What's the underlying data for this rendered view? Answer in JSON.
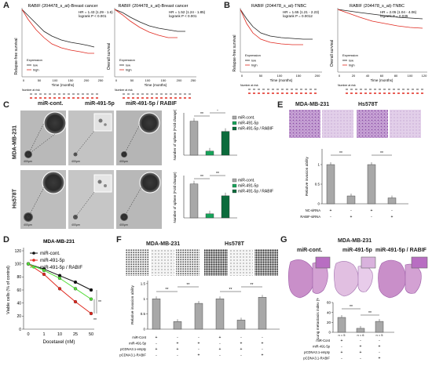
{
  "panels": {
    "A": {
      "label": "A",
      "km1": {
        "title": "RABIF (204478_s_at)-Breast cancer",
        "stats": [
          "HR = 1.43 (1.29 - 1.6)",
          "logrank  P < 0.001"
        ],
        "ylabel": "Relapse-free survival",
        "xlabel": "Time (months)",
        "legend_title": "Expression",
        "legend": [
          "low",
          "high"
        ],
        "xticks": [
          "0",
          "50",
          "100",
          "150",
          "200",
          "250"
        ],
        "risk_label": "Number at risk"
      },
      "km2": {
        "title": "RABIF (204478_s_at)-Breast cancer",
        "stats": [
          "HR = 1.52 (1.24 - 1.85)",
          "logrank  P < 0.001"
        ],
        "ylabel": "Overall survival",
        "xlabel": "Time (months)",
        "legend_title": "Expression",
        "legend": [
          "low",
          "high"
        ],
        "xticks": [
          "0",
          "50",
          "100",
          "150",
          "200",
          "250"
        ],
        "risk_label": "Number at risk"
      }
    },
    "B": {
      "label": "B",
      "km1": {
        "title": "RABIF (204478_s_at)-TNBC",
        "stats": [
          "HR = 1.65 (1.21 - 2.23)",
          "logrank  P = 0.0012"
        ],
        "ylabel": "Relapse-free survival",
        "xlabel": "Time (months)",
        "legend_title": "Expression",
        "legend": [
          "low",
          "high"
        ],
        "xticks": [
          "0",
          "50",
          "100",
          "150",
          "200"
        ],
        "risk_label": "Number at risk"
      },
      "km2": {
        "title": "RABIF (204478_s_at)-TNBC",
        "stats": [
          "HR = 2.05 (1.04 - 4.06)",
          "logrank  P = 0.035"
        ],
        "ylabel": "Overall survival",
        "xlabel": "Time (months)",
        "legend_title": "Expression",
        "legend": [
          "low",
          "high"
        ],
        "xticks": [
          "0",
          "20",
          "40",
          "60",
          "80",
          "100",
          "120"
        ],
        "risk_label": "Number at risk"
      }
    },
    "C": {
      "label": "C",
      "col_titles": [
        "miR-cont.",
        "miR-491-5p",
        "miR-491-5p / RABIF"
      ],
      "row_titles": [
        "MDA-MB-231",
        "Hs578T"
      ],
      "scale": "400μm",
      "ylabel": "Number of sphere (Fold change)",
      "legend": [
        "miR-cont.",
        "miR-491-5p",
        "miR-491-5p / RABIF"
      ],
      "sig1": [
        "**",
        "*"
      ],
      "sig2": [
        "**",
        "**"
      ]
    },
    "D": {
      "label": "D",
      "title": "MDA-MB-231",
      "ylabel": "Viable cells (% of control)",
      "xlabel": "Docetaxel (nM)",
      "legend": [
        "miR-cont.",
        "miR-491-5p",
        "miR-491-5p / RABIF"
      ],
      "sig": [
        "**",
        "**"
      ]
    },
    "E": {
      "label": "E",
      "cells": [
        "MDA-MB-231",
        "Hs578T"
      ],
      "ylabel": "Relative invasion ability",
      "rows": [
        {
          "name": "NC-siRNA",
          "marks": [
            "+",
            "-",
            "+",
            "-"
          ]
        },
        {
          "name": "RABIF-siRNA",
          "marks": [
            "-",
            "+",
            "-",
            "+"
          ]
        }
      ],
      "sig": [
        "**",
        "**"
      ]
    },
    "F": {
      "label": "F",
      "cells": [
        "MDA-MB-231",
        "Hs578T"
      ],
      "ylabel": "Relative invasion ability",
      "rows": [
        {
          "name": "miR-Cont",
          "marks": [
            "+",
            "-",
            "-",
            "+",
            "-",
            "-"
          ]
        },
        {
          "name": "miR-491-5p",
          "marks": [
            "-",
            "+",
            "+",
            "-",
            "+",
            "+"
          ]
        },
        {
          "name": "pCDNA3.1-empty",
          "marks": [
            "+",
            "+",
            "-",
            "+",
            "+",
            "-"
          ]
        },
        {
          "name": "pCDNA3.1-RABIF",
          "marks": [
            "-",
            "-",
            "+",
            "-",
            "-",
            "+"
          ]
        }
      ],
      "sig": [
        "**",
        "**",
        "**",
        "**"
      ]
    },
    "G": {
      "label": "G",
      "title": "MDA-MB-231",
      "col_titles": [
        "miR-cont.",
        "miR-491-5p",
        "miR-491-5p / RABIF"
      ],
      "ylabel": "Lung metastasis index (%)",
      "n_labels": [
        "n = 5",
        "n = 6",
        "n = 5"
      ],
      "rows": [
        {
          "name": "miR-Cont",
          "marks": [
            "+",
            "-",
            "-"
          ]
        },
        {
          "name": "miR-491-5p",
          "marks": [
            "-",
            "+",
            "+"
          ]
        },
        {
          "name": "pCDNA3.1-empty",
          "marks": [
            "+",
            "+",
            "-"
          ]
        },
        {
          "name": "pCDNA3.1-RABIF",
          "marks": [
            "-",
            "-",
            "+"
          ]
        }
      ],
      "sig": [
        "**",
        "**"
      ]
    }
  },
  "colors": {
    "low": "#222222",
    "high": "#e0281e",
    "cont": "#a8a8a8",
    "mir": "#17a35a",
    "rabif": "#0c6b3c",
    "d_cont": "#111111",
    "d_mir": "#e0281e",
    "d_rabif": "#55dd3a"
  },
  "chart_data": [
    {
      "id": "C-MDA",
      "type": "bar",
      "categories": [
        "miR-cont.",
        "miR-491-5p",
        "miR-491-5p / RABIF"
      ],
      "values": [
        1.0,
        0.12,
        0.7
      ]
    },
    {
      "id": "C-Hs",
      "type": "bar",
      "categories": [
        "miR-cont.",
        "miR-491-5p",
        "miR-491-5p / RABIF"
      ],
      "values": [
        1.0,
        0.12,
        0.65
      ]
    },
    {
      "id": "D",
      "type": "line",
      "x": [
        0,
        1,
        10,
        25,
        50
      ],
      "xlabel": "Docetaxel (nM)",
      "ylabel": "Viable cells (% of control)",
      "yticks": [
        0,
        20,
        40,
        60,
        80,
        100,
        120
      ],
      "ylim": [
        0,
        120
      ],
      "series": [
        {
          "name": "miR-cont.",
          "values": [
            100,
            92,
            82,
            72,
            60
          ]
        },
        {
          "name": "miR-491-5p",
          "values": [
            100,
            84,
            62,
            42,
            24
          ]
        },
        {
          "name": "miR-491-5p / RABIF",
          "values": [
            100,
            90,
            78,
            62,
            46
          ]
        }
      ]
    },
    {
      "id": "E",
      "type": "bar",
      "categories": [
        "MDA-MB-231 NC",
        "MDA-MB-231 RABIF",
        "Hs578T NC",
        "Hs578T RABIF"
      ],
      "values": [
        1.0,
        0.2,
        1.0,
        0.15
      ],
      "yticks": [
        0.0,
        0.5,
        1.0
      ],
      "ylim": [
        0,
        1.4
      ]
    },
    {
      "id": "F",
      "type": "bar",
      "categories": [
        "1",
        "2",
        "3",
        "4",
        "5",
        "6"
      ],
      "values": [
        1.0,
        0.25,
        0.85,
        1.0,
        0.3,
        1.05
      ],
      "yticks": [
        0.0,
        0.5,
        1.0,
        1.5
      ],
      "ylim": [
        0,
        1.6
      ]
    },
    {
      "id": "G",
      "type": "bar",
      "categories": [
        "miR-cont.",
        "miR-491-5p",
        "miR-491-5p / RABIF"
      ],
      "values": [
        30,
        8,
        22
      ],
      "yticks": [
        0,
        20,
        40,
        60
      ],
      "ylim": [
        0,
        60
      ]
    }
  ]
}
